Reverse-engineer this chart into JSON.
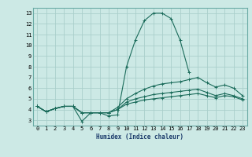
{
  "xlabel": "Humidex (Indice chaleur)",
  "ylabel": "",
  "bg_color": "#cce9e5",
  "line_color": "#1a6b5a",
  "grid_color": "#aacfcb",
  "spine_color": "#6aaba5",
  "x_ticks": [
    0,
    1,
    2,
    3,
    4,
    5,
    6,
    7,
    8,
    9,
    10,
    11,
    12,
    13,
    14,
    15,
    16,
    17,
    18,
    19,
    20,
    21,
    22,
    23
  ],
  "y_ticks": [
    3,
    4,
    5,
    6,
    7,
    8,
    9,
    10,
    11,
    12,
    13
  ],
  "ylim": [
    2.5,
    13.5
  ],
  "xlim": [
    -0.5,
    23.5
  ],
  "lines": [
    [
      4.3,
      3.8,
      4.1,
      4.3,
      4.3,
      2.9,
      3.7,
      3.7,
      3.4,
      3.5,
      8.0,
      10.5,
      12.3,
      13.0,
      13.0,
      12.5,
      10.5,
      7.5,
      null,
      null,
      null,
      null,
      null,
      null
    ],
    [
      4.3,
      3.8,
      4.1,
      4.3,
      4.3,
      3.7,
      3.7,
      3.7,
      3.7,
      4.2,
      5.0,
      5.5,
      5.9,
      6.2,
      6.4,
      6.5,
      6.6,
      6.8,
      7.0,
      6.5,
      6.1,
      6.3,
      6.0,
      5.3
    ],
    [
      4.3,
      3.8,
      4.1,
      4.3,
      4.3,
      3.7,
      3.7,
      3.7,
      3.7,
      4.0,
      4.7,
      5.0,
      5.2,
      5.4,
      5.5,
      5.6,
      5.7,
      5.8,
      5.9,
      5.6,
      5.3,
      5.5,
      5.3,
      5.0
    ],
    [
      4.3,
      3.8,
      4.1,
      4.3,
      4.3,
      3.7,
      3.7,
      3.7,
      3.7,
      4.0,
      4.5,
      4.7,
      4.9,
      5.0,
      5.1,
      5.2,
      5.3,
      5.4,
      5.5,
      5.3,
      5.1,
      5.3,
      5.2,
      4.9
    ]
  ]
}
